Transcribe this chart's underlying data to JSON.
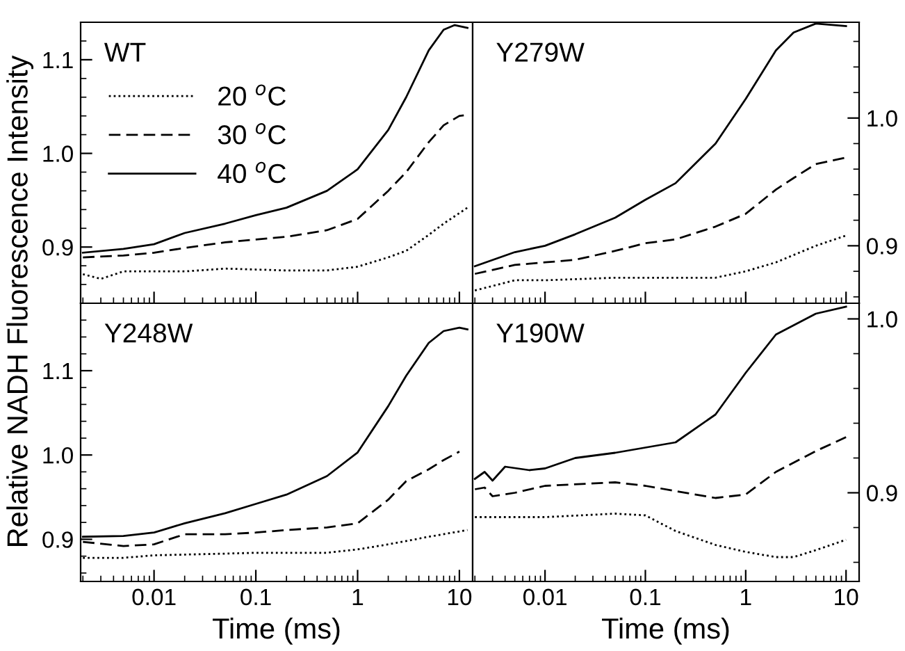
{
  "chart_data": [
    {
      "type": "line",
      "annotations": [
        "WT"
      ],
      "ylabel": "Relative NADH Fluorescence Intensity",
      "log": "x",
      "xlim": [
        0.0019,
        13.5
      ],
      "ylim": [
        0.84,
        1.14
      ],
      "xticks": [
        0.01,
        0.1,
        1,
        10
      ],
      "yticks": [
        {
          "value": 0.9,
          "label": "0.9"
        },
        {
          "value": 1,
          "label": "1.0"
        },
        {
          "value": 1.1,
          "label": "1.1"
        }
      ],
      "tick_labels": "y",
      "legend": "top left",
      "series": [
        {
          "name": "20 $^{o}$C",
          "color": "#000000",
          "line_style": "dotted",
          "x": [
            0.002,
            0.003,
            0.005,
            0.01,
            0.02,
            0.05,
            0.1,
            0.2,
            0.5,
            1,
            2,
            3,
            5,
            7,
            12
          ],
          "values": [
            0.871,
            0.866,
            0.874,
            0.874,
            0.874,
            0.877,
            0.876,
            0.875,
            0.875,
            0.879,
            0.889,
            0.896,
            0.913,
            0.925,
            0.942
          ]
        },
        {
          "name": "30 $^{o}$C",
          "color": "#000000",
          "line_style": "dashed",
          "x": [
            0.002,
            0.005,
            0.01,
            0.02,
            0.05,
            0.1,
            0.2,
            0.5,
            1,
            2,
            3,
            5,
            7,
            10,
            12
          ],
          "values": [
            0.889,
            0.891,
            0.894,
            0.899,
            0.905,
            0.908,
            0.911,
            0.918,
            0.93,
            0.96,
            0.98,
            1.012,
            1.03,
            1.04,
            1.041
          ]
        },
        {
          "name": "40 $^{o}$C",
          "color": "#000000",
          "line_style": "solid",
          "x": [
            0.002,
            0.005,
            0.01,
            0.02,
            0.05,
            0.1,
            0.2,
            0.5,
            1,
            2,
            3,
            5,
            7,
            9,
            12
          ],
          "values": [
            0.894,
            0.898,
            0.903,
            0.915,
            0.925,
            0.934,
            0.942,
            0.96,
            0.983,
            1.025,
            1.06,
            1.11,
            1.132,
            1.137,
            1.134
          ]
        }
      ]
    },
    {
      "type": "line",
      "annotations": [
        "Y279W"
      ],
      "log": "x",
      "xlim": [
        0.0019,
        13.5
      ],
      "ylim": [
        0.855,
        1.075
      ],
      "xticks": [
        0.01,
        0.1,
        1,
        10
      ],
      "yticks": [
        {
          "value": 0.9,
          "label": "0.9"
        },
        {
          "value": 1,
          "label": "1.0"
        }
      ],
      "tick_labels": "y",
      "series": [
        {
          "color": "#000000",
          "line_style": "dotted",
          "x": [
            0.002,
            0.005,
            0.01,
            0.05,
            0.1,
            0.2,
            0.5,
            1,
            2,
            5,
            10
          ],
          "values": [
            0.865,
            0.873,
            0.873,
            0.875,
            0.875,
            0.875,
            0.875,
            0.88,
            0.887,
            0.9,
            0.908
          ]
        },
        {
          "color": "#000000",
          "line_style": "dashed",
          "x": [
            0.002,
            0.005,
            0.01,
            0.02,
            0.05,
            0.1,
            0.2,
            0.5,
            1,
            2,
            3,
            5,
            10
          ],
          "values": [
            0.878,
            0.885,
            0.887,
            0.889,
            0.896,
            0.902,
            0.905,
            0.915,
            0.925,
            0.944,
            0.953,
            0.964,
            0.969
          ]
        },
        {
          "color": "#000000",
          "line_style": "solid",
          "x": [
            0.002,
            0.005,
            0.01,
            0.02,
            0.05,
            0.1,
            0.2,
            0.5,
            1,
            2,
            3,
            5,
            10
          ],
          "values": [
            0.884,
            0.895,
            0.9,
            0.909,
            0.922,
            0.936,
            0.949,
            0.98,
            1.015,
            1.053,
            1.067,
            1.074,
            1.072
          ]
        }
      ]
    },
    {
      "type": "line",
      "annotations": [
        "Y248W"
      ],
      "xlabel": "Time (ms)",
      "log": "x",
      "xlim": [
        0.0019,
        13.5
      ],
      "ylim": [
        0.85,
        1.18
      ],
      "xticks": [
        0.01,
        0.1,
        1,
        10
      ],
      "yticks": [
        {
          "value": 0.9,
          "label": "0.9"
        },
        {
          "value": 1,
          "label": "1.0"
        },
        {
          "value": 1.1,
          "label": "1.1"
        }
      ],
      "series": [
        {
          "color": "#000000",
          "line_style": "dotted",
          "x": [
            0.002,
            0.005,
            0.01,
            0.05,
            0.1,
            0.5,
            1,
            2,
            5,
            12
          ],
          "values": [
            0.878,
            0.878,
            0.881,
            0.883,
            0.884,
            0.884,
            0.888,
            0.894,
            0.903,
            0.911
          ]
        },
        {
          "color": "#000000",
          "line_style": "dashed",
          "x": [
            0.002,
            0.005,
            0.01,
            0.02,
            0.05,
            0.1,
            0.2,
            0.5,
            1,
            2,
            3,
            5,
            7,
            10
          ],
          "values": [
            0.897,
            0.892,
            0.894,
            0.906,
            0.906,
            0.908,
            0.911,
            0.914,
            0.919,
            0.947,
            0.969,
            0.983,
            0.994,
            1.004
          ]
        },
        {
          "color": "#000000",
          "line_style": "solid",
          "x": [
            0.002,
            0.005,
            0.01,
            0.02,
            0.05,
            0.1,
            0.2,
            0.5,
            1,
            2,
            3,
            5,
            7,
            10,
            12
          ],
          "values": [
            0.903,
            0.904,
            0.908,
            0.919,
            0.931,
            0.942,
            0.953,
            0.975,
            1.003,
            1.058,
            1.094,
            1.133,
            1.147,
            1.151,
            1.149
          ]
        }
      ]
    },
    {
      "type": "line",
      "annotations": [
        "Y190W"
      ],
      "xlabel": "Time (ms)",
      "log": "x",
      "xlim": [
        0.0019,
        13.5
      ],
      "ylim": [
        0.849,
        1.009
      ],
      "xticks": [
        0.01,
        0.1,
        1,
        10
      ],
      "yticks": [
        {
          "value": 0.9,
          "label": "0.9"
        },
        {
          "value": 1,
          "label": "1.0"
        }
      ],
      "series": [
        {
          "color": "#000000",
          "line_style": "dotted",
          "x": [
            0.002,
            0.01,
            0.05,
            0.1,
            0.2,
            0.5,
            1,
            2,
            3,
            5,
            10
          ],
          "values": [
            0.886,
            0.886,
            0.888,
            0.887,
            0.878,
            0.87,
            0.866,
            0.863,
            0.863,
            0.867,
            0.873
          ]
        },
        {
          "color": "#000000",
          "line_style": "dashed",
          "x": [
            0.002,
            0.0025,
            0.003,
            0.005,
            0.01,
            0.05,
            0.1,
            0.2,
            0.5,
            1,
            2,
            5,
            10
          ],
          "values": [
            0.902,
            0.903,
            0.898,
            0.9,
            0.904,
            0.906,
            0.904,
            0.901,
            0.897,
            0.899,
            0.912,
            0.924,
            0.932
          ]
        },
        {
          "color": "#000000",
          "line_style": "solid",
          "x": [
            0.002,
            0.0025,
            0.003,
            0.004,
            0.007,
            0.01,
            0.02,
            0.05,
            0.1,
            0.2,
            0.5,
            1,
            2,
            5,
            10
          ],
          "values": [
            0.908,
            0.912,
            0.907,
            0.915,
            0.913,
            0.914,
            0.92,
            0.923,
            0.926,
            0.929,
            0.945,
            0.969,
            0.991,
            1.003,
            1.007
          ]
        }
      ]
    }
  ]
}
